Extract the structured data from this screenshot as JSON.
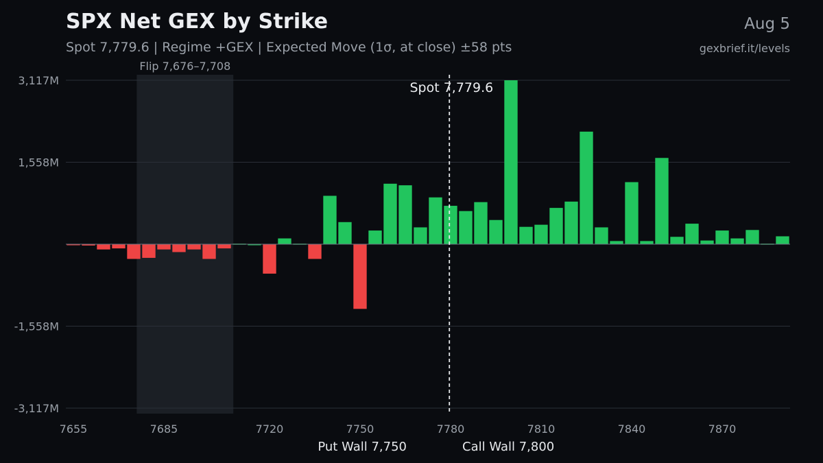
{
  "header": {
    "title": "SPX Net GEX by Strike",
    "subtitle": "Spot 7,779.6 | Regime +GEX | Expected Move (1σ, at close) ±58 pts",
    "date": "Aug 5",
    "site": "gexbrief.it/levels"
  },
  "colors": {
    "background": "#0a0c10",
    "positive": "#22c55e",
    "negative": "#ef4444",
    "grid": "#2a2f38",
    "flip_zone": "#1b1f25",
    "text_muted": "#9aa0a8"
  },
  "chart_data": {
    "type": "bar",
    "x": [
      7655,
      7660,
      7665,
      7670,
      7675,
      7680,
      7685,
      7690,
      7695,
      7700,
      7705,
      7710,
      7715,
      7720,
      7725,
      7730,
      7735,
      7740,
      7745,
      7750,
      7755,
      7760,
      7765,
      7770,
      7775,
      7780,
      7785,
      7790,
      7795,
      7800,
      7805,
      7810,
      7815,
      7820,
      7825,
      7830,
      7835,
      7840,
      7845,
      7850,
      7855,
      7860,
      7865,
      7870,
      7875,
      7880,
      7885,
      7890
    ],
    "values": [
      -20,
      -25,
      -100,
      -80,
      -280,
      -260,
      -100,
      -150,
      -100,
      -280,
      -80,
      10,
      0,
      -560,
      110,
      10,
      -280,
      920,
      420,
      -1230,
      260,
      1150,
      1120,
      320,
      890,
      730,
      630,
      800,
      460,
      3117,
      330,
      370,
      690,
      810,
      2140,
      320,
      60,
      1180,
      60,
      1640,
      140,
      390,
      70,
      260,
      110,
      270,
      10,
      150
    ],
    "unit": "M",
    "ylim": [
      -3117,
      3117
    ],
    "yticks": [
      3117,
      1558,
      -1558,
      -3117
    ],
    "ytick_labels": [
      "3,117M",
      "1,558M",
      "-1,558M",
      "-3,117M"
    ],
    "xticks": [
      7655,
      7685,
      7720,
      7750,
      7780,
      7810,
      7840,
      7870
    ],
    "xtick_labels": [
      "7655",
      "7685",
      "7720",
      "7750",
      "7780",
      "7810",
      "7840",
      "7870"
    ],
    "spot": 7779.6,
    "spot_label": "Spot 7,779.6",
    "flip_zone": [
      7676,
      7708
    ],
    "flip_label": "Flip 7,676–7,708",
    "put_wall_label": "Put Wall 7,750",
    "call_wall_label": "Call Wall 7,800",
    "grid": true
  }
}
